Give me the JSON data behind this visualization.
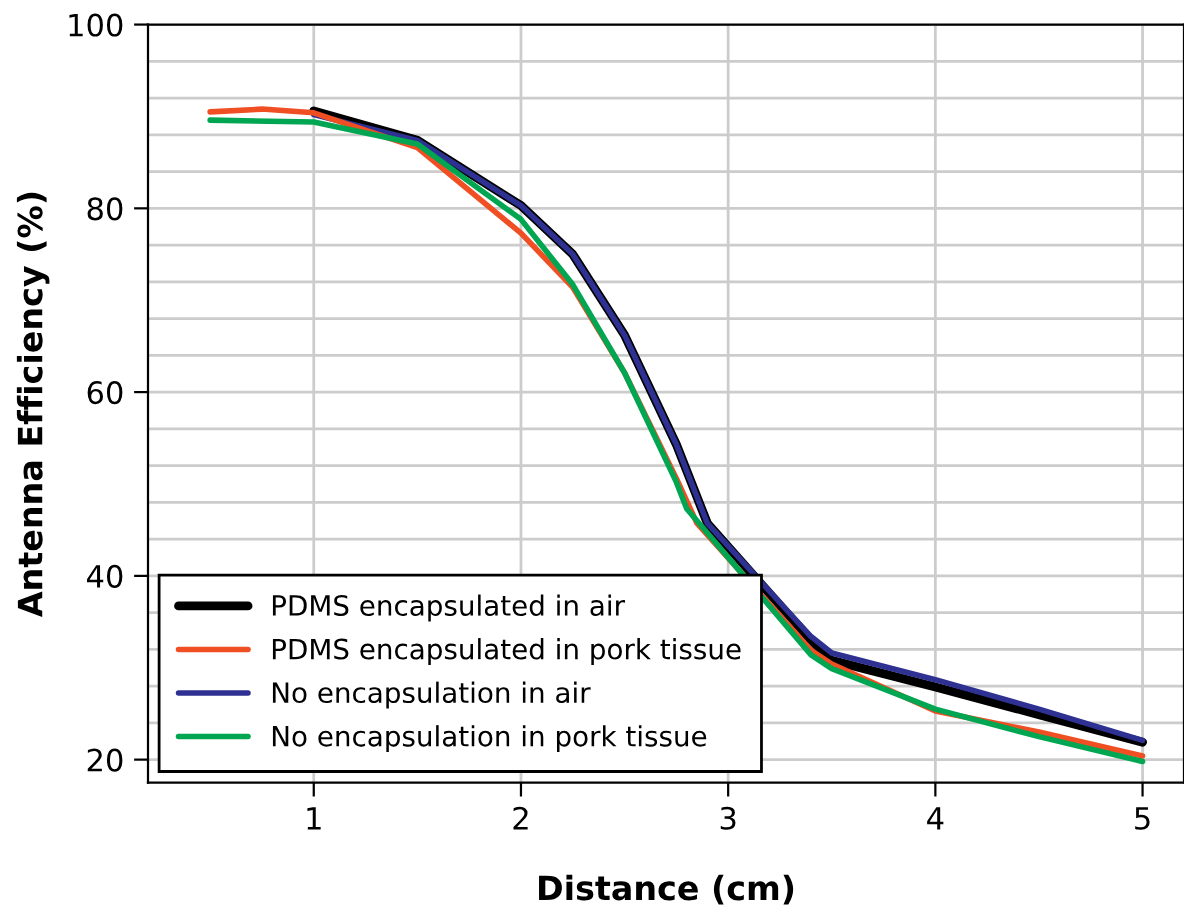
{
  "chart_data": {
    "type": "line",
    "xlabel": "Distance (cm)",
    "ylabel": "Antenna Efficiency (%)",
    "xlim": [
      0.2,
      5.2
    ],
    "xticks": [
      1,
      2,
      3,
      4,
      5
    ],
    "ylim": [
      17.5,
      100
    ],
    "yticks": [
      20,
      {
        "value": 24,
        "label": null
      },
      {
        "value": 28,
        "label": null
      },
      {
        "value": 32,
        "label": null
      },
      {
        "value": 36,
        "label": null
      },
      40,
      {
        "value": 44,
        "label": null
      },
      {
        "value": 48,
        "label": null
      },
      {
        "value": 52,
        "label": null
      },
      {
        "value": 56,
        "label": null
      },
      60,
      {
        "value": 64,
        "label": null
      },
      {
        "value": 68,
        "label": null
      },
      {
        "value": 72,
        "label": null
      },
      {
        "value": 76,
        "label": null
      },
      80,
      {
        "value": 84,
        "label": null
      },
      {
        "value": 88,
        "label": null
      },
      {
        "value": 92,
        "label": null
      },
      {
        "value": 96,
        "label": null
      },
      100
    ],
    "grid": true,
    "legend": "bottom left",
    "series": [
      {
        "name": "PDMS encapsulated in air",
        "color": "#000000",
        "x": [
          1,
          1.5,
          2,
          2.25,
          2.5,
          2.75,
          2.9,
          3.4,
          3.5,
          4,
          4.5,
          5
        ],
        "values": [
          90.6,
          87.4,
          80.3,
          75,
          66.2,
          54.3,
          45.7,
          33.0,
          30.8,
          27.9,
          24.9,
          21.9
        ]
      },
      {
        "name": "PDMS encapsulated in pork tissue",
        "color": "#f04e23",
        "x": [
          0.5,
          0.75,
          1,
          1.5,
          2,
          2.25,
          2.5,
          2.75,
          2.85,
          3.4,
          3.5,
          4,
          4.5,
          5
        ],
        "values": [
          90.5,
          90.8,
          90.4,
          86.6,
          77.3,
          71.4,
          62.1,
          50.6,
          45.7,
          31.9,
          30.4,
          25.3,
          23.0,
          20.4
        ]
      },
      {
        "name": "No encapsulation in air",
        "color": "#2e3192",
        "x": [
          1,
          1.5,
          2,
          2.25,
          2.5,
          2.75,
          2.9,
          3.4,
          3.5,
          4,
          4.5,
          5
        ],
        "values": [
          90.2,
          87.4,
          80.3,
          75,
          66.2,
          54.3,
          45.7,
          33.4,
          31.6,
          28.7,
          25.5,
          22.1
        ]
      },
      {
        "name": "No encapsulation in pork tissue",
        "color": "#00a651",
        "x": [
          0.5,
          1,
          1.5,
          2,
          2.25,
          2.5,
          2.75,
          2.8,
          3.4,
          3.5,
          4,
          4.5,
          5
        ],
        "values": [
          89.6,
          89.4,
          87,
          78.8,
          71.7,
          62.1,
          50.2,
          47.3,
          31.4,
          29.9,
          25.5,
          22.5,
          19.8
        ]
      }
    ]
  }
}
